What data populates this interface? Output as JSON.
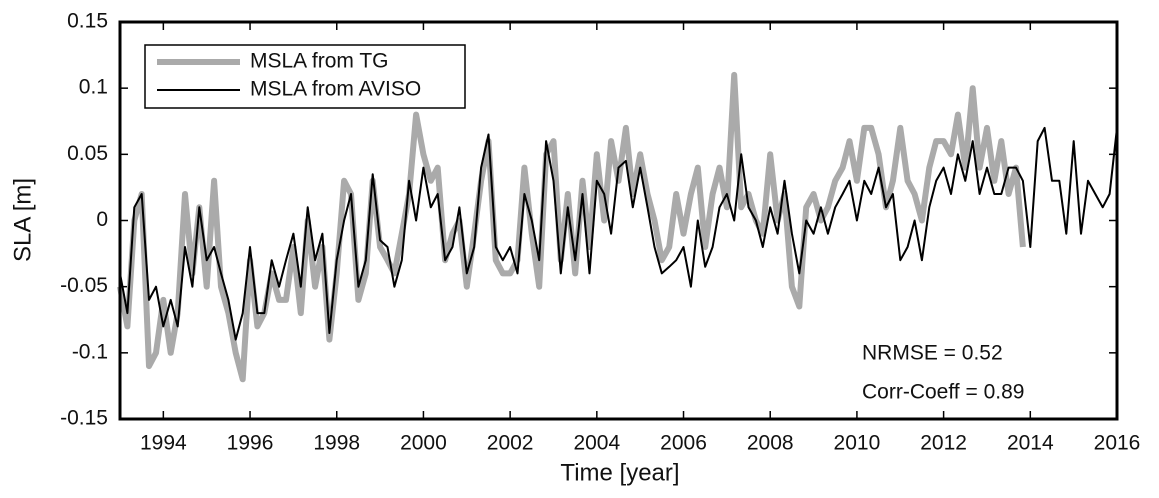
{
  "chart_data": {
    "type": "line",
    "xlabel": "Time [year]",
    "ylabel": "SLA [m]",
    "xlim": [
      1993,
      2016
    ],
    "xticks": [
      1994,
      1996,
      1998,
      2000,
      2002,
      2004,
      2006,
      2008,
      2010,
      2012,
      2014,
      2016
    ],
    "ylim": [
      -0.15,
      0.15
    ],
    "yticks": [
      -0.15,
      -0.1,
      -0.05,
      0,
      0.05,
      0.1,
      0.15
    ],
    "legend": "upper left",
    "annotations": [
      "NRMSE = 0.52",
      "Corr-Coeff = 0.89"
    ],
    "x": [
      1993.0,
      1993.17,
      1993.33,
      1993.5,
      1993.67,
      1993.83,
      1994.0,
      1994.17,
      1994.33,
      1994.5,
      1994.67,
      1994.83,
      1995.0,
      1995.17,
      1995.33,
      1995.5,
      1995.67,
      1995.83,
      1996.0,
      1996.17,
      1996.33,
      1996.5,
      1996.67,
      1996.83,
      1997.0,
      1997.17,
      1997.33,
      1997.5,
      1997.67,
      1997.83,
      1998.0,
      1998.17,
      1998.33,
      1998.5,
      1998.67,
      1998.83,
      1999.0,
      1999.17,
      1999.33,
      1999.5,
      1999.67,
      1999.83,
      2000.0,
      2000.17,
      2000.33,
      2000.5,
      2000.67,
      2000.83,
      2001.0,
      2001.17,
      2001.33,
      2001.5,
      2001.67,
      2001.83,
      2002.0,
      2002.17,
      2002.33,
      2002.5,
      2002.67,
      2002.83,
      2003.0,
      2003.17,
      2003.33,
      2003.5,
      2003.67,
      2003.83,
      2004.0,
      2004.17,
      2004.33,
      2004.5,
      2004.67,
      2004.83,
      2005.0,
      2005.17,
      2005.33,
      2005.5,
      2005.67,
      2005.83,
      2006.0,
      2006.17,
      2006.33,
      2006.5,
      2006.67,
      2006.83,
      2007.0,
      2007.17,
      2007.33,
      2007.5,
      2007.67,
      2007.83,
      2008.0,
      2008.17,
      2008.33,
      2008.5,
      2008.67,
      2008.83,
      2009.0,
      2009.17,
      2009.33,
      2009.5,
      2009.67,
      2009.83,
      2010.0,
      2010.17,
      2010.33,
      2010.5,
      2010.67,
      2010.83,
      2011.0,
      2011.17,
      2011.33,
      2011.5,
      2011.67,
      2011.83,
      2012.0,
      2012.17,
      2012.33,
      2012.5,
      2012.67,
      2012.83,
      2013.0,
      2013.17,
      2013.33,
      2013.5,
      2013.67,
      2013.83,
      2014.0,
      2014.17,
      2014.33,
      2014.5,
      2014.67,
      2014.83,
      2015.0,
      2015.17,
      2015.33,
      2015.5,
      2015.67,
      2015.83,
      2016.0
    ],
    "series": [
      {
        "name": "MSLA from TG",
        "color": "#aaaaaa",
        "width": 6,
        "values": [
          -0.05,
          -0.08,
          0.0,
          0.02,
          -0.11,
          -0.1,
          -0.06,
          -0.1,
          -0.07,
          0.02,
          -0.04,
          0.01,
          -0.05,
          0.03,
          -0.05,
          -0.07,
          -0.1,
          -0.12,
          -0.03,
          -0.08,
          -0.07,
          -0.04,
          -0.06,
          -0.06,
          -0.02,
          -0.07,
          0.0,
          -0.05,
          -0.02,
          -0.09,
          -0.04,
          0.03,
          0.02,
          -0.06,
          -0.04,
          0.03,
          -0.02,
          -0.03,
          -0.04,
          -0.01,
          0.02,
          0.08,
          0.05,
          0.03,
          0.04,
          -0.03,
          -0.01,
          0.0,
          -0.05,
          -0.01,
          0.03,
          0.06,
          -0.03,
          -0.04,
          -0.04,
          -0.03,
          0.04,
          -0.01,
          -0.05,
          0.05,
          0.06,
          -0.03,
          0.02,
          -0.04,
          0.03,
          -0.02,
          0.05,
          0.0,
          0.06,
          0.03,
          0.07,
          0.02,
          0.05,
          0.02,
          0.0,
          -0.03,
          -0.02,
          0.02,
          -0.01,
          0.02,
          0.04,
          -0.02,
          0.02,
          0.04,
          0.01,
          0.11,
          0.01,
          0.02,
          0.0,
          -0.01,
          0.05,
          0.0,
          0.02,
          -0.05,
          -0.065,
          0.01,
          0.02,
          0.0,
          0.01,
          0.03,
          0.04,
          0.06,
          0.03,
          0.07,
          0.07,
          0.05,
          0.01,
          0.03,
          0.07,
          0.03,
          0.02,
          0.0,
          0.04,
          0.06,
          0.06,
          0.05,
          0.08,
          0.04,
          0.1,
          0.04,
          0.07,
          0.03,
          0.06,
          0.02,
          0.04,
          -0.02,
          null,
          null,
          null,
          null,
          null,
          null,
          null,
          null,
          null,
          null,
          null,
          null,
          null
        ]
      },
      {
        "name": "MSLA from AVISO",
        "color": "#000000",
        "width": 2,
        "values": [
          -0.04,
          -0.07,
          0.01,
          0.02,
          -0.06,
          -0.05,
          -0.08,
          -0.06,
          -0.08,
          -0.02,
          -0.05,
          0.01,
          -0.03,
          -0.02,
          -0.04,
          -0.06,
          -0.09,
          -0.07,
          -0.02,
          -0.07,
          -0.07,
          -0.03,
          -0.05,
          -0.03,
          -0.01,
          -0.05,
          0.01,
          -0.03,
          -0.01,
          -0.085,
          -0.03,
          0.0,
          0.02,
          -0.05,
          -0.03,
          0.035,
          -0.015,
          -0.02,
          -0.05,
          -0.03,
          0.03,
          0.0,
          0.04,
          0.01,
          0.02,
          -0.03,
          -0.02,
          0.01,
          -0.04,
          -0.02,
          0.04,
          0.065,
          -0.02,
          -0.03,
          -0.02,
          -0.04,
          0.02,
          0.0,
          -0.03,
          0.06,
          0.03,
          -0.04,
          0.01,
          -0.03,
          0.02,
          -0.04,
          0.03,
          0.02,
          -0.01,
          0.04,
          0.045,
          0.01,
          0.04,
          0.01,
          -0.02,
          -0.04,
          -0.035,
          -0.03,
          -0.02,
          -0.05,
          0.0,
          -0.035,
          -0.02,
          0.01,
          0.02,
          0.0,
          0.05,
          0.01,
          0.0,
          -0.02,
          0.01,
          -0.01,
          0.03,
          -0.01,
          -0.04,
          0.0,
          -0.01,
          0.01,
          -0.01,
          0.01,
          0.02,
          0.03,
          0.0,
          0.03,
          0.02,
          0.04,
          0.01,
          0.02,
          -0.03,
          -0.02,
          0.0,
          -0.03,
          0.01,
          0.03,
          0.04,
          0.02,
          0.05,
          0.03,
          0.06,
          0.02,
          0.04,
          0.02,
          0.02,
          0.04,
          0.04,
          0.03,
          -0.02,
          0.06,
          0.07,
          0.03,
          0.03,
          -0.01,
          0.06,
          -0.01,
          0.03,
          0.02,
          0.01,
          0.02,
          0.07
        ]
      }
    ]
  }
}
